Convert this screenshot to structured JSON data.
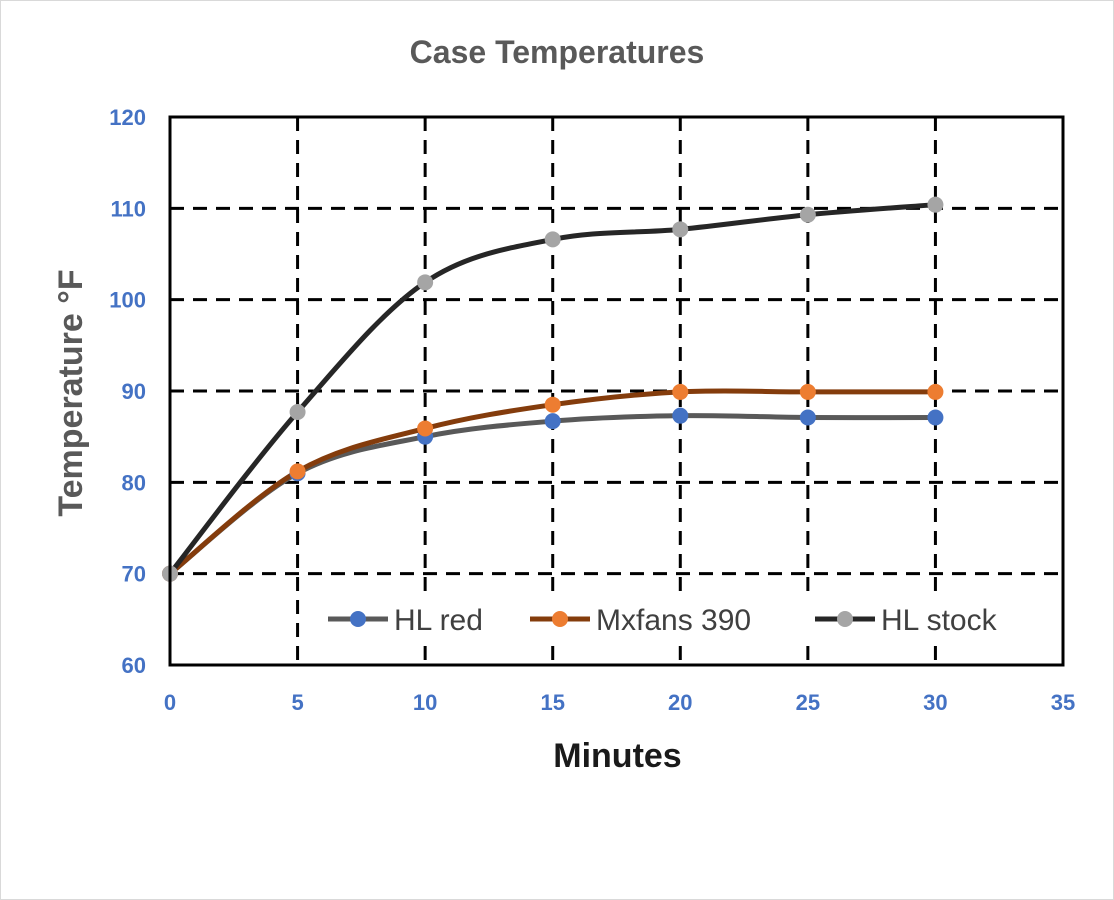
{
  "chart_data": {
    "type": "line",
    "title": "Case Temperatures",
    "xlabel": "Minutes",
    "ylabel": "Temperature °F",
    "xlim": [
      0,
      35
    ],
    "ylim": [
      60,
      120
    ],
    "x_ticks": [
      0,
      5,
      10,
      15,
      20,
      25,
      30,
      35
    ],
    "y_ticks": [
      60,
      70,
      80,
      90,
      100,
      110,
      120
    ],
    "x_tick_labels": [
      "0",
      "5",
      "10",
      "15",
      "20",
      "25",
      "30",
      "35"
    ],
    "y_tick_labels": [
      "60",
      "70",
      "80",
      "90",
      "100",
      "110",
      "120"
    ],
    "grid": "dashed, on",
    "legend_position": "bottom-inside",
    "smoothed": true,
    "x": [
      0,
      5,
      10,
      15,
      20,
      25,
      30
    ],
    "series": [
      {
        "name": "HL red",
        "marker_color": "#4472c4",
        "line_color": "#595959",
        "values": [
          70,
          81,
          85,
          86.7,
          87.3,
          87.1,
          87.1
        ]
      },
      {
        "name": "Mxfans 390",
        "marker_color": "#ed7d31",
        "line_color": "#843c0c",
        "values": [
          70,
          81.2,
          85.9,
          88.5,
          89.9,
          89.9,
          89.9
        ]
      },
      {
        "name": "HL stock",
        "marker_color": "#a5a5a5",
        "line_color": "#262626",
        "values": [
          70,
          87.7,
          101.9,
          106.6,
          107.7,
          109.3,
          110.4
        ]
      }
    ]
  }
}
